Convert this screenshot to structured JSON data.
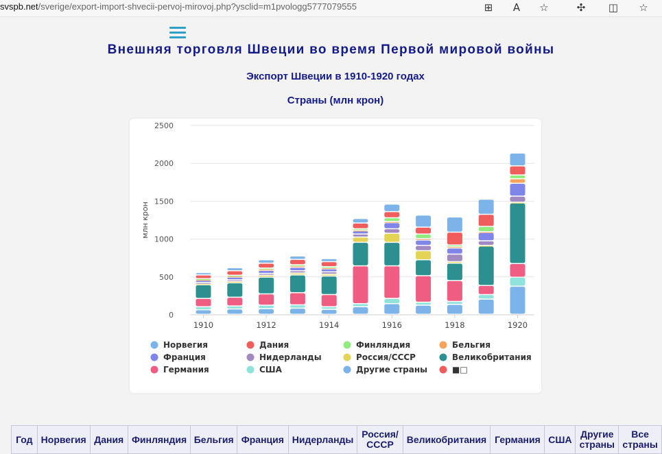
{
  "browser": {
    "url_host": "svspb.net",
    "url_path": "/sverige/export-import-shvecii-pervoj-mirovoj.php?ysclid=m1pvologg5777079555",
    "icons": [
      "grid-add-icon",
      "read-aloud-icon",
      "favorite-star-icon",
      "extensions-icon",
      "split-screen-icon",
      "favorites-list-icon"
    ]
  },
  "page": {
    "title": "Внешняя торговля Швеции во время Первой мировой войны",
    "subtitle": "Экспорт Швеции в 1910-1920 годах",
    "subtitle2": "Страны (млн крон)"
  },
  "chart_data": {
    "type": "bar",
    "stacked": true,
    "categories": [
      "1910",
      "1911",
      "1912",
      "1913",
      "1914",
      "1915",
      "1916",
      "1917",
      "1918",
      "1919",
      "1920"
    ],
    "ylabel": "млн крон",
    "ylim": [
      0,
      2500
    ],
    "yticks": [
      0,
      500,
      1000,
      1500,
      2000,
      2500
    ],
    "xtick_labels": [
      "1910",
      "1912",
      "1914",
      "1916",
      "1918",
      "1920"
    ],
    "grid": true,
    "legend_position": "bottom",
    "series": [
      {
        "name": "Норвегия",
        "color": "#7cb4ea",
        "values": [
          60,
          70,
          75,
          80,
          65,
          100,
          140,
          120,
          130,
          200,
          370
        ]
      },
      {
        "name": "США",
        "color": "#8fe3dc",
        "values": [
          40,
          40,
          45,
          45,
          35,
          40,
          70,
          40,
          40,
          60,
          120
        ]
      },
      {
        "name": "Германия",
        "color": "#ef5d83",
        "values": [
          110,
          115,
          150,
          160,
          160,
          500,
          430,
          350,
          275,
          120,
          180
        ]
      },
      {
        "name": "Великобритания",
        "color": "#2b908f",
        "values": [
          180,
          190,
          220,
          235,
          245,
          310,
          310,
          210,
          230,
          520,
          800
        ]
      },
      {
        "name": "Россия/СССР",
        "color": "#e4d354",
        "values": [
          15,
          20,
          25,
          25,
          25,
          70,
          120,
          120,
          20,
          10,
          10
        ]
      },
      {
        "name": "Нидерланды",
        "color": "#a18ac2",
        "values": [
          15,
          20,
          25,
          30,
          30,
          40,
          60,
          70,
          100,
          60,
          80
        ]
      },
      {
        "name": "Франция",
        "color": "#8085e9",
        "values": [
          30,
          35,
          40,
          45,
          40,
          40,
          80,
          70,
          80,
          110,
          170
        ]
      },
      {
        "name": "Бельгия",
        "color": "#f7a35c",
        "values": [
          10,
          15,
          15,
          20,
          15,
          10,
          15,
          20,
          20,
          10,
          60
        ]
      },
      {
        "name": "Финляндия",
        "color": "#90ed7d",
        "values": [
          10,
          10,
          15,
          15,
          15,
          20,
          50,
          60,
          20,
          70,
          50
        ]
      },
      {
        "name": "Дания",
        "color": "#f15c5c",
        "values": [
          50,
          60,
          65,
          70,
          65,
          75,
          80,
          90,
          170,
          160,
          120
        ]
      },
      {
        "name": "Другие страны",
        "color": "#7cb4ea",
        "values": [
          30,
          40,
          45,
          45,
          40,
          60,
          100,
          160,
          200,
          200,
          170
        ]
      }
    ],
    "legend": [
      {
        "name": "Норвегия",
        "color": "#7cb4ea"
      },
      {
        "name": "Дания",
        "color": "#f15c5c"
      },
      {
        "name": "Финляндия",
        "color": "#90ed7d"
      },
      {
        "name": "Бельгия",
        "color": "#f7a35c"
      },
      {
        "name": "Франция",
        "color": "#8085e9"
      },
      {
        "name": "Нидерланды",
        "color": "#a18ac2"
      },
      {
        "name": "Россия/СССР",
        "color": "#e4d354"
      },
      {
        "name": "Великобритания",
        "color": "#2b908f"
      },
      {
        "name": "Германия",
        "color": "#ef5d83"
      },
      {
        "name": "США",
        "color": "#8fe3dc"
      },
      {
        "name": "Другие страны",
        "color": "#7cb4ea"
      },
      {
        "name": "■□",
        "color": "#f15c5c"
      }
    ]
  },
  "table": {
    "headers": [
      "Год",
      "Норвегия",
      "Дания",
      "Финляндия",
      "Бельгия",
      "Франция",
      "Нидерланды",
      "Россия/ СССР",
      "Великобритания",
      "Германия",
      "США",
      "Другие страны",
      "Все страны"
    ]
  }
}
